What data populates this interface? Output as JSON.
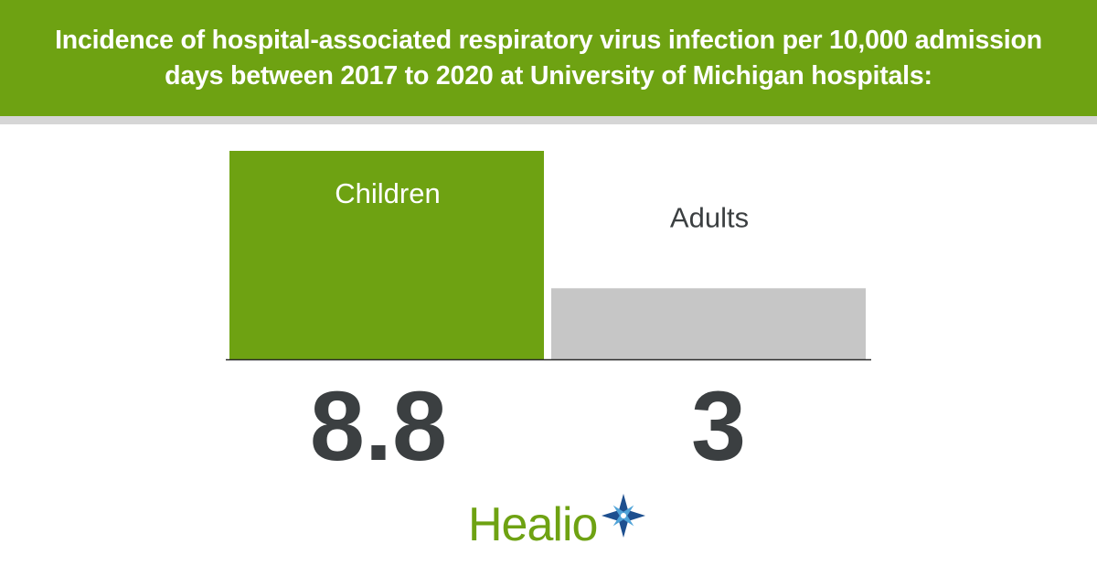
{
  "header": {
    "title": "Incidence of hospital-associated respiratory virus infection per 10,000 admission days between 2017 to 2020 at University of Michigan hospitals:"
  },
  "chart_data": {
    "type": "bar",
    "title": "Incidence of hospital-associated respiratory virus infection per 10,000 admission days between 2017 to 2020 at University of Michigan hospitals:",
    "categories": [
      "Children",
      "Adults"
    ],
    "values": [
      8.8,
      3
    ],
    "value_labels": [
      "8.8",
      "3"
    ],
    "ylim": [
      0,
      8.8
    ],
    "grid": false,
    "colors": [
      "#6ea212",
      "#c6c6c6"
    ],
    "category_label_colors": [
      "#ffffff",
      "#3b3f41"
    ]
  },
  "brand": {
    "logo_text": "Healio",
    "logo_color": "#6ea212",
    "star_colors": [
      "#1d4f8f",
      "#4fa3d8"
    ]
  },
  "colors": {
    "header_bg": "#6ea212",
    "header_rule": "#d6d6d6",
    "value_text": "#3b3f41",
    "axis": "#2b2b2b"
  }
}
